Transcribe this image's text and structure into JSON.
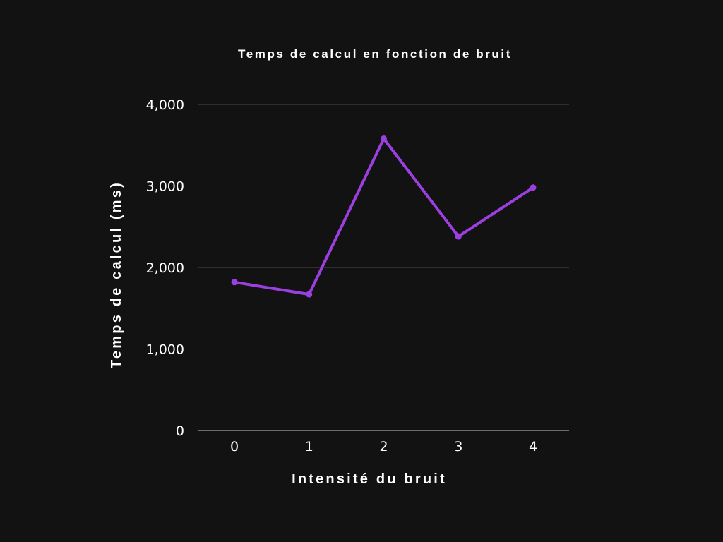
{
  "chart_data": {
    "type": "line",
    "title": "Temps de calcul en fonction de bruit",
    "xlabel": "Intensité du bruit",
    "ylabel": "Temps de calcul (ms)",
    "categories": [
      "0",
      "1",
      "2",
      "3",
      "4"
    ],
    "series": [
      {
        "values": [
          1820,
          1670,
          3580,
          2380,
          2980
        ],
        "color": "#9b3fe0"
      }
    ],
    "ylim": [
      0,
      4000
    ],
    "y_ticks": [
      0,
      1000,
      2000,
      3000,
      4000
    ],
    "y_tick_labels": [
      "0",
      "1,000",
      "2,000",
      "3,000",
      "4,000"
    ],
    "grid": true,
    "legend": "none"
  }
}
